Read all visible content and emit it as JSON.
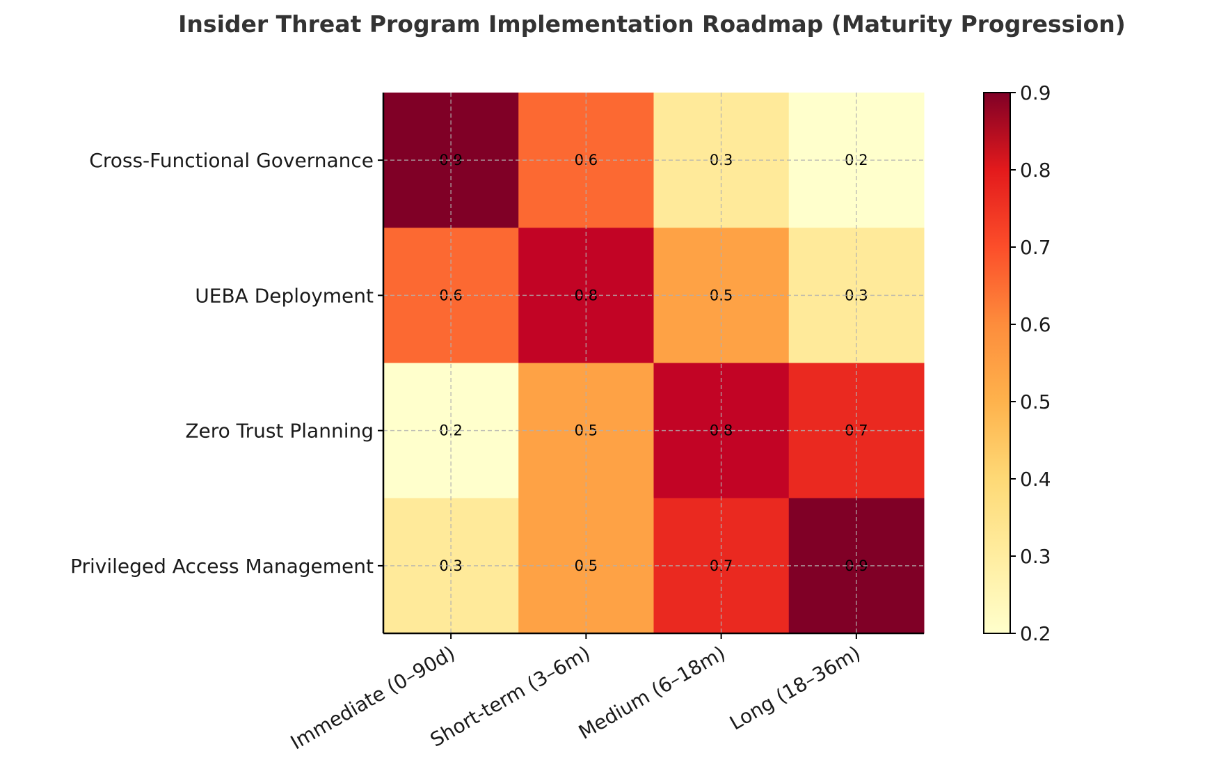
{
  "chart_data": {
    "type": "heatmap",
    "title": "Insider Threat Program Implementation Roadmap (Maturity Progression)",
    "xlabel": "",
    "ylabel": "",
    "rows": [
      "Cross-Functional Governance",
      "UEBA Deployment",
      "Zero Trust Planning",
      "Privileged Access Management"
    ],
    "columns": [
      "Immediate (0–90d)",
      "Short-term (3–6m)",
      "Medium (6–18m)",
      "Long (18–36m)"
    ],
    "values": [
      [
        0.9,
        0.6,
        0.3,
        0.2
      ],
      [
        0.6,
        0.8,
        0.5,
        0.3
      ],
      [
        0.2,
        0.5,
        0.8,
        0.7
      ],
      [
        0.3,
        0.5,
        0.7,
        0.9
      ]
    ],
    "value_labels": [
      [
        "0.9",
        "0.6",
        "0.3",
        "0.2"
      ],
      [
        "0.6",
        "0.8",
        "0.5",
        "0.3"
      ],
      [
        "0.2",
        "0.5",
        "0.8",
        "0.7"
      ],
      [
        "0.3",
        "0.5",
        "0.7",
        "0.9"
      ]
    ],
    "colormap": "YlOrRd",
    "grid": true,
    "colorbar": {
      "range": [
        0.2,
        0.9
      ],
      "ticks": [
        0.2,
        0.3,
        0.4,
        0.5,
        0.6,
        0.7,
        0.8,
        0.9
      ],
      "tick_labels": [
        "0.2",
        "0.3",
        "0.4",
        "0.5",
        "0.6",
        "0.7",
        "0.8",
        "0.9"
      ],
      "placement": "right"
    }
  }
}
